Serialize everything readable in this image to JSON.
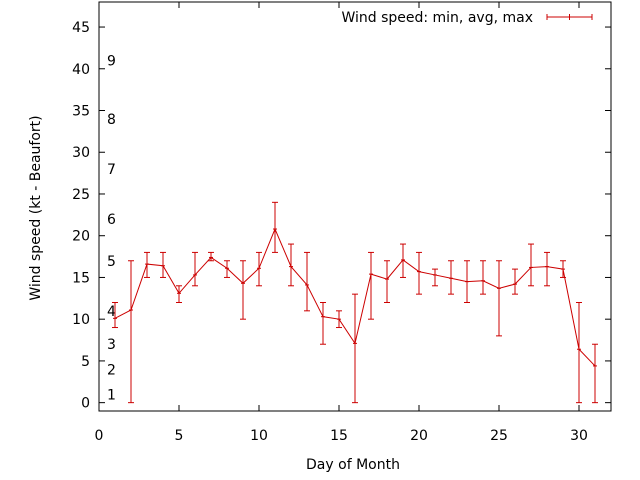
{
  "chart_data": {
    "type": "line",
    "xlabel": "Day of Month",
    "ylabel": "Wind speed (kt - Beaufort)",
    "xlim": [
      0,
      32
    ],
    "ylim": [
      -1,
      48
    ],
    "xticks": [
      0,
      5,
      10,
      15,
      20,
      25,
      30
    ],
    "yticks": [
      0,
      5,
      10,
      15,
      20,
      25,
      30,
      35,
      40,
      45
    ],
    "grid": false,
    "legend_position": "top-right",
    "series_color": "#cc0000",
    "beaufort_labels": [
      {
        "label": "1",
        "y": 1
      },
      {
        "label": "2",
        "y": 4
      },
      {
        "label": "3",
        "y": 7
      },
      {
        "label": "4",
        "y": 11
      },
      {
        "label": "5",
        "y": 17
      },
      {
        "label": "6",
        "y": 22
      },
      {
        "label": "7",
        "y": 28
      },
      {
        "label": "8",
        "y": 34
      },
      {
        "label": "9",
        "y": 41
      }
    ],
    "series": [
      {
        "name": "Wind speed: min, avg, max",
        "x": [
          1,
          2,
          3,
          4,
          5,
          6,
          7,
          8,
          9,
          10,
          11,
          12,
          13,
          14,
          15,
          16,
          17,
          18,
          19,
          20,
          21,
          22,
          23,
          24,
          25,
          26,
          27,
          28,
          29,
          30,
          31
        ],
        "avg": [
          10.1,
          11.1,
          16.6,
          16.4,
          13.1,
          15.3,
          17.4,
          16.1,
          14.3,
          16.1,
          20.8,
          16.3,
          14.1,
          10.3,
          10.0,
          7.1,
          15.4,
          14.8,
          17.1,
          15.7,
          15.3,
          14.9,
          14.5,
          14.6,
          13.7,
          14.2,
          16.2,
          16.3,
          16.0,
          6.4,
          4.4
        ],
        "min": [
          9,
          0,
          15,
          15,
          12,
          14,
          17,
          15,
          10,
          14,
          18,
          14,
          11,
          7,
          9,
          0,
          10,
          12,
          15,
          13,
          14,
          13,
          12,
          13,
          8,
          13,
          14,
          14,
          15,
          0,
          0
        ],
        "max": [
          12,
          17,
          18,
          18,
          14,
          18,
          18,
          17,
          17,
          18,
          24,
          19,
          18,
          12,
          11,
          13,
          18,
          17,
          19,
          18,
          16,
          17,
          17,
          17,
          17,
          16,
          19,
          18,
          17,
          12,
          7
        ]
      }
    ]
  }
}
